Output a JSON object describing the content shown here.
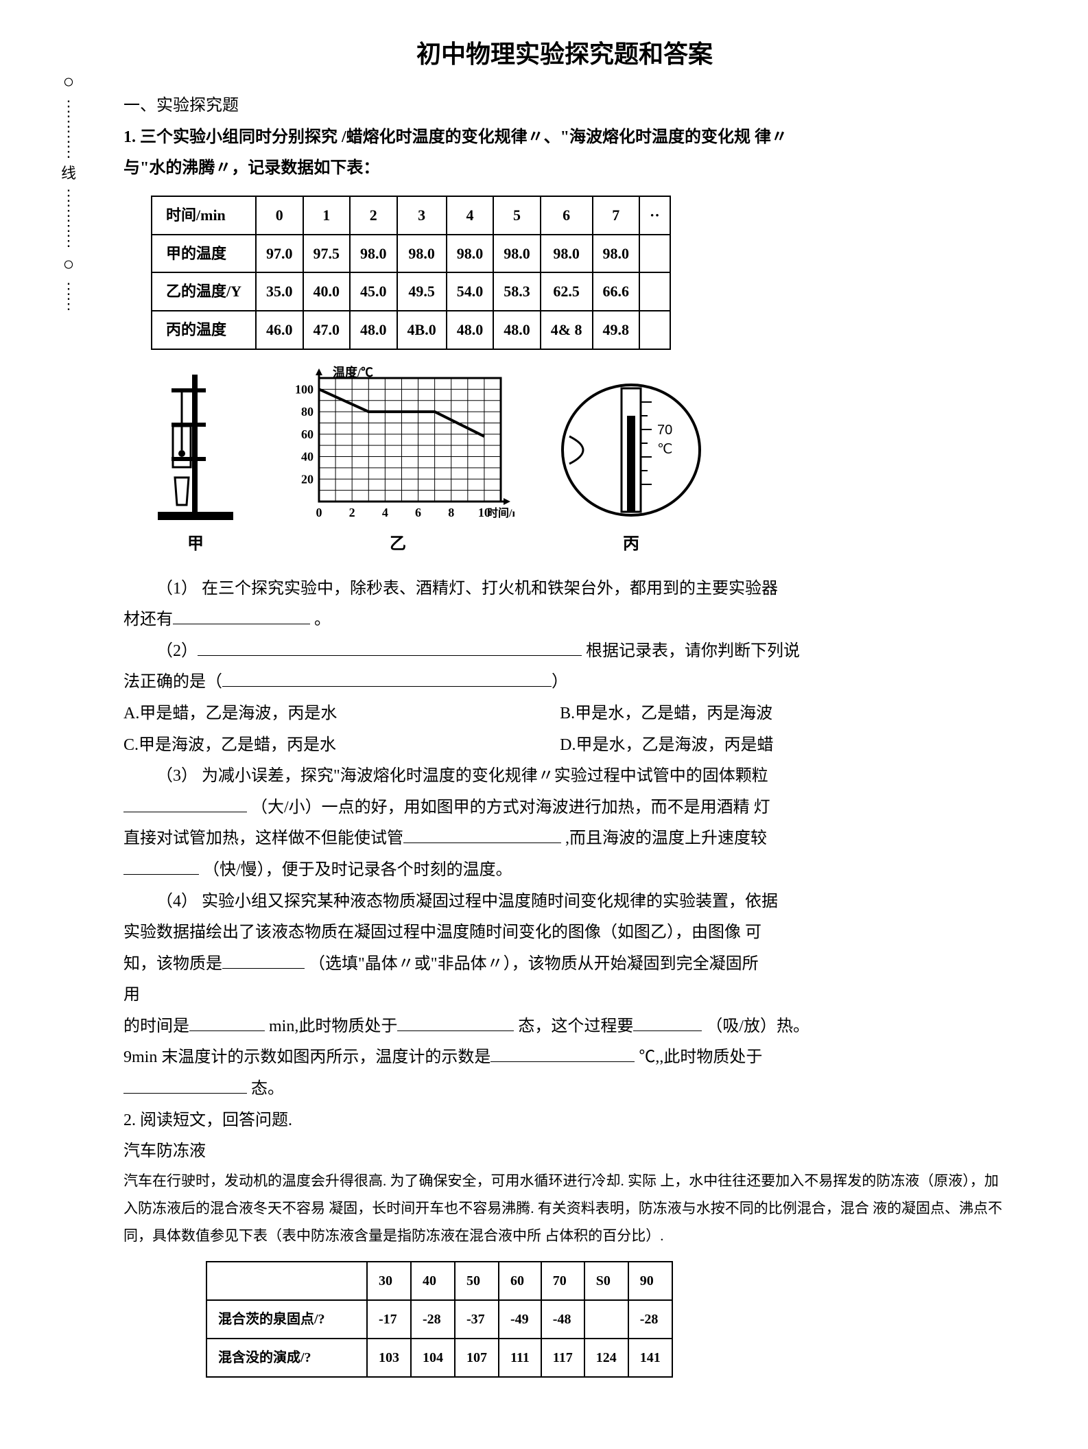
{
  "title": "初中物理实验探究题和答案",
  "binding": {
    "label": "线"
  },
  "section_heading": "一、实验探究题",
  "q1": {
    "stem_line1": "1. 三个实验小组同时分别探究 /蜡熔化时温度的变化规律〃、\"海波熔化时温度的变化规 律〃",
    "stem_line2": "与\"水的沸腾〃，记录数据如下表：",
    "table1": {
      "headers": [
        "时间/min",
        "0",
        "1",
        "2",
        "3",
        "4",
        "5",
        "6",
        "7",
        "··"
      ],
      "rows": [
        [
          "甲的温度",
          "97.0",
          "97.5",
          "98.0",
          "98.0",
          "98.0",
          "98.0",
          "98.0",
          "98.0",
          ""
        ],
        [
          "乙的温度/Y",
          "35.0",
          "40.0",
          "45.0",
          "49.5",
          "54.0",
          "58.3",
          "62.5",
          "66.6",
          ""
        ],
        [
          "丙的温度",
          "46.0",
          "47.0",
          "48.0",
          "4B.0",
          "48.0",
          "48.0",
          "4& 8",
          "49.8",
          ""
        ]
      ]
    },
    "fig_labels": {
      "a": "甲",
      "b": "乙",
      "c": "丙"
    },
    "chart": {
      "ylabel": "温度/℃",
      "xlabel": "时间/min",
      "yticks": [
        0,
        20,
        40,
        60,
        80,
        100
      ],
      "xticks": [
        0,
        2,
        4,
        6,
        8,
        10
      ],
      "line_color": "#000000",
      "grid_color": "#000000",
      "ylim": [
        0,
        110
      ],
      "xlim": [
        0,
        11
      ]
    },
    "thermo": {
      "mark1": "70",
      "unit": "℃"
    },
    "p1_a": "（1）  在三个探究实验中，除秒表、酒精灯、打火机和铁架台外，都用到的主要实验器",
    "p1_b": "材还有",
    "p2_a": "（2）",
    "p2_b": " 根据记录表，请你判断下列说",
    "p2_c": "法正确的是（",
    "p2_d": "）",
    "opts": {
      "A": "A.甲是蜡，乙是海波，丙是水",
      "B": "B.甲是水，乙是蜡，丙是海波",
      "C": "C.甲是海波，乙是蜡，丙是水",
      "D": "D.甲是水，乙是海波，丙是蜡"
    },
    "p3_a": "（3）  为减小误差，探究\"海波熔化时温度的变化规律〃实验过程中试管中的固体颗粒",
    "p3_b": " （大/小）一点的好，用如图甲的方式对海波进行加热，而不是用酒精 灯",
    "p3_c": "直接对试管加热，这样做不但能使试管",
    "p3_d": " ,而且海波的温度上升速度较",
    "p3_e": "（快/慢），便于及时记录各个时刻的温度。",
    "p4_a": "（4）  实验小组又探究某种液态物质凝固过程中温度随时间变化规律的实验装置，依据",
    "p4_b": "实验数据描绘出了该液态物质在凝固过程中温度随时间变化的图像（如图乙），由图像 可",
    "p4_c": "知，该物质是",
    "p4_d": "（选填\"晶体〃或\"非品体〃），该物质从开始凝固到完全凝固所",
    "p4_e": "用",
    "p4_f": "的时间是",
    "p4_g": " min,此时物质处于",
    "p4_h": " 态，这个过程要",
    "p4_i": " （吸/放）热。",
    "p4_j": "9min 末温度计的示数如图丙所示，温度计的示数是",
    "p4_k": " ℃,,此时物质处于",
    "p4_l": " 态。"
  },
  "q2": {
    "stem": "2. 阅读短文，回答问题.",
    "subtitle": "汽车防冻液",
    "para1": "汽车在行驶时，发动机的温度会升得很高. 为了确保安全，可用水循环进行冷却. 实际 上，水中往往还要加入不易挥发的防冻液（原液），加入防冻液后的混合液冬天不容易 凝固，长时间开车也不容易沸腾. 有关资料表明，防冻液与水按不同的比例混合，混合 液的凝固点、沸点不同，具体数值参见下表（表中防冻液含量是指防冻液在混合液中所 占体积的百分比）.",
    "table2": {
      "headers": [
        "",
        "30",
        "40",
        "50",
        "60",
        "70",
        "S0",
        "90"
      ],
      "rows": [
        [
          "混合茨的泉固点/?",
          "-17",
          "-28",
          "-37",
          "-49",
          "-48",
          "",
          "-28"
        ],
        [
          "混含没的演成/?",
          "103",
          "104",
          "107",
          "111",
          "117",
          "124",
          "141"
        ]
      ]
    }
  }
}
